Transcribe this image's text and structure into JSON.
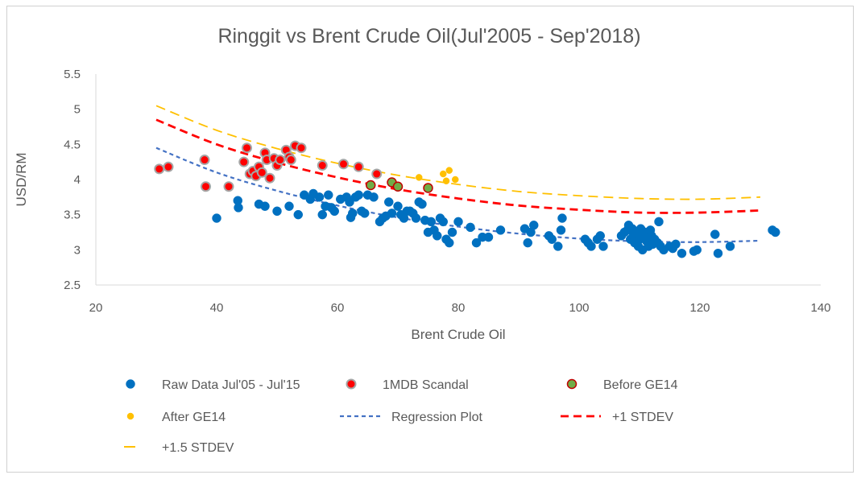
{
  "chart_data": {
    "type": "scatter",
    "title": "Ringgit vs Brent Crude Oil(Jul'2005 - Sep'2018)",
    "xlabel": "Brent Crude Oil",
    "ylabel": "USD/RM",
    "xlim": [
      20,
      140
    ],
    "ylim": [
      2.5,
      5.5
    ],
    "xticks": [
      "20",
      "40",
      "60",
      "80",
      "100",
      "120",
      "140"
    ],
    "yticks": [
      "2.5",
      "3",
      "3.5",
      "4",
      "4.5",
      "5",
      "5.5"
    ],
    "grid": false,
    "legend_position": "bottom",
    "colors": {
      "raw": "#0070C0",
      "mdb_fill": "#FF0000",
      "mdb_edge": "#A5A5A5",
      "ge14_fill": "#70AD47",
      "ge14_edge": "#C00000",
      "after": "#FFC000",
      "regression": "#4472C4",
      "stdev1": "#FF0000",
      "stdev15": "#FFC000"
    },
    "series": [
      {
        "name": "Raw Data Jul'05 - Jul'15",
        "kind": "marker",
        "points": [
          [
            40,
            3.45
          ],
          [
            43.5,
            3.7
          ],
          [
            43.6,
            3.6
          ],
          [
            47,
            3.65
          ],
          [
            48,
            3.62
          ],
          [
            50,
            3.55
          ],
          [
            52,
            3.62
          ],
          [
            53.5,
            3.5
          ],
          [
            54.5,
            3.78
          ],
          [
            55.5,
            3.72
          ],
          [
            56,
            3.8
          ],
          [
            57,
            3.75
          ],
          [
            57.5,
            3.5
          ],
          [
            58,
            3.62
          ],
          [
            58.5,
            3.78
          ],
          [
            59,
            3.6
          ],
          [
            59.5,
            3.55
          ],
          [
            60.5,
            3.72
          ],
          [
            61.5,
            3.75
          ],
          [
            62,
            3.68
          ],
          [
            62.2,
            3.46
          ],
          [
            62.5,
            3.52
          ],
          [
            63,
            3.75
          ],
          [
            63.5,
            3.78
          ],
          [
            64,
            3.55
          ],
          [
            64.5,
            3.52
          ],
          [
            65,
            3.78
          ],
          [
            66,
            3.75
          ],
          [
            67,
            3.4
          ],
          [
            67.5,
            3.45
          ],
          [
            68,
            3.48
          ],
          [
            68.5,
            3.68
          ],
          [
            69,
            3.52
          ],
          [
            70,
            3.62
          ],
          [
            70.5,
            3.5
          ],
          [
            71,
            3.45
          ],
          [
            71.5,
            3.55
          ],
          [
            72,
            3.55
          ],
          [
            72.5,
            3.52
          ],
          [
            73,
            3.45
          ],
          [
            73.5,
            3.68
          ],
          [
            74,
            3.65
          ],
          [
            74.5,
            3.42
          ],
          [
            75,
            3.25
          ],
          [
            75.5,
            3.4
          ],
          [
            76,
            3.28
          ],
          [
            76.5,
            3.2
          ],
          [
            77,
            3.45
          ],
          [
            77.5,
            3.4
          ],
          [
            78,
            3.15
          ],
          [
            78.5,
            3.1
          ],
          [
            79,
            3.25
          ],
          [
            80,
            3.4
          ],
          [
            82,
            3.32
          ],
          [
            83,
            3.1
          ],
          [
            84,
            3.18
          ],
          [
            85,
            3.18
          ],
          [
            87,
            3.28
          ],
          [
            91,
            3.3
          ],
          [
            91.5,
            3.1
          ],
          [
            92,
            3.25
          ],
          [
            92.5,
            3.35
          ],
          [
            95,
            3.2
          ],
          [
            95.5,
            3.15
          ],
          [
            96.5,
            3.05
          ],
          [
            97,
            3.28
          ],
          [
            97.2,
            3.45
          ],
          [
            101,
            3.15
          ],
          [
            101.5,
            3.1
          ],
          [
            102,
            3.05
          ],
          [
            103,
            3.15
          ],
          [
            103.5,
            3.2
          ],
          [
            104,
            3.05
          ],
          [
            107,
            3.2
          ],
          [
            107.5,
            3.25
          ],
          [
            108,
            3.28
          ],
          [
            108.2,
            3.35
          ],
          [
            108.5,
            3.15
          ],
          [
            108.8,
            3.3
          ],
          [
            109,
            3.2
          ],
          [
            109.2,
            3.1
          ],
          [
            109.5,
            3.25
          ],
          [
            109.8,
            3.05
          ],
          [
            110,
            3.15
          ],
          [
            110.2,
            3.3
          ],
          [
            110.5,
            3.0
          ],
          [
            110.8,
            3.2
          ],
          [
            111,
            3.25
          ],
          [
            111.2,
            3.12
          ],
          [
            111.5,
            3.05
          ],
          [
            111.8,
            3.28
          ],
          [
            112,
            3.2
          ],
          [
            112.2,
            3.08
          ],
          [
            112.5,
            3.15
          ],
          [
            113,
            3.1
          ],
          [
            113.2,
            3.4
          ],
          [
            113.5,
            3.05
          ],
          [
            114,
            3.0
          ],
          [
            115,
            3.05
          ],
          [
            115.5,
            3.02
          ],
          [
            116,
            3.08
          ],
          [
            117,
            2.95
          ],
          [
            119,
            2.98
          ],
          [
            119.5,
            3.0
          ],
          [
            122.5,
            3.22
          ],
          [
            123,
            2.95
          ],
          [
            125,
            3.05
          ],
          [
            132,
            3.28
          ],
          [
            132.5,
            3.25
          ]
        ]
      },
      {
        "name": "1MDB Scandal",
        "kind": "marker",
        "points": [
          [
            30.5,
            4.15
          ],
          [
            32,
            4.18
          ],
          [
            38,
            4.28
          ],
          [
            38.2,
            3.9
          ],
          [
            42,
            3.9
          ],
          [
            44.5,
            4.25
          ],
          [
            45,
            4.45
          ],
          [
            45.5,
            4.08
          ],
          [
            46,
            4.12
          ],
          [
            46.5,
            4.05
          ],
          [
            47,
            4.18
          ],
          [
            47.5,
            4.1
          ],
          [
            48,
            4.38
          ],
          [
            48.3,
            4.28
          ],
          [
            48.8,
            4.02
          ],
          [
            49.5,
            4.3
          ],
          [
            50,
            4.2
          ],
          [
            50.5,
            4.28
          ],
          [
            51.5,
            4.42
          ],
          [
            52,
            4.32
          ],
          [
            52.3,
            4.28
          ],
          [
            53,
            4.48
          ],
          [
            54,
            4.45
          ],
          [
            57.5,
            4.2
          ],
          [
            61,
            4.22
          ],
          [
            63.5,
            4.18
          ],
          [
            66.5,
            4.08
          ]
        ]
      },
      {
        "name": "Before GE14",
        "kind": "marker",
        "points": [
          [
            65.5,
            3.92
          ],
          [
            69,
            3.96
          ],
          [
            70,
            3.9
          ],
          [
            75,
            3.88
          ]
        ]
      },
      {
        "name": "After GE14",
        "kind": "marker",
        "points": [
          [
            73.5,
            4.03
          ],
          [
            77.5,
            4.08
          ],
          [
            78,
            3.98
          ],
          [
            78.5,
            4.13
          ],
          [
            79.5,
            4.0
          ]
        ]
      },
      {
        "name": "Regression Plot",
        "kind": "line",
        "points": [
          [
            30,
            4.45
          ],
          [
            40,
            4.1
          ],
          [
            50,
            3.84
          ],
          [
            60,
            3.63
          ],
          [
            70,
            3.46
          ],
          [
            80,
            3.33
          ],
          [
            90,
            3.23
          ],
          [
            100,
            3.16
          ],
          [
            110,
            3.12
          ],
          [
            120,
            3.11
          ],
          [
            130,
            3.13
          ]
        ]
      },
      {
        "name": "+1 STDEV",
        "kind": "line",
        "points": [
          [
            30,
            4.85
          ],
          [
            40,
            4.5
          ],
          [
            50,
            4.24
          ],
          [
            60,
            4.03
          ],
          [
            70,
            3.86
          ],
          [
            80,
            3.73
          ],
          [
            90,
            3.63
          ],
          [
            100,
            3.57
          ],
          [
            110,
            3.53
          ],
          [
            120,
            3.53
          ],
          [
            130,
            3.56
          ]
        ]
      },
      {
        "name": "+1.5 STDEV",
        "kind": "line",
        "points": [
          [
            30,
            5.05
          ],
          [
            40,
            4.7
          ],
          [
            50,
            4.44
          ],
          [
            60,
            4.23
          ],
          [
            70,
            4.06
          ],
          [
            80,
            3.93
          ],
          [
            90,
            3.83
          ],
          [
            100,
            3.77
          ],
          [
            110,
            3.73
          ],
          [
            120,
            3.72
          ],
          [
            130,
            3.75
          ]
        ]
      }
    ]
  }
}
